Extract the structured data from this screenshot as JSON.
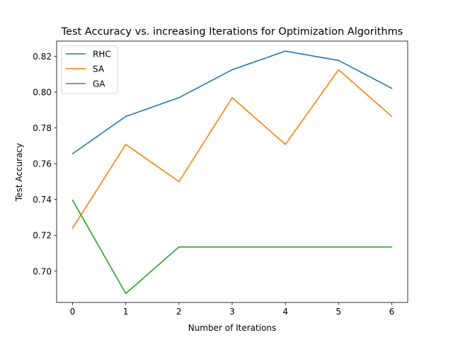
{
  "chart_data": {
    "type": "line",
    "title": "Test Accuracy vs. increasing Iterations for Optimization Algorithms",
    "xlabel": "Number of Iterations",
    "ylabel": "Test Accuracy",
    "x": [
      0,
      1,
      2,
      3,
      4,
      5,
      6
    ],
    "xlim": [
      -0.3,
      6.3
    ],
    "ylim": [
      0.6825,
      0.8285
    ],
    "xticks": [
      "0",
      "1",
      "2",
      "3",
      "4",
      "5",
      "6"
    ],
    "yticks": [
      "0.70",
      "0.72",
      "0.74",
      "0.76",
      "0.78",
      "0.80",
      "0.82"
    ],
    "grid": false,
    "legend_position": "top-left",
    "series": [
      {
        "name": "RHC",
        "color": "#1f77b4",
        "values": [
          0.7656,
          0.7864,
          0.7969,
          0.8125,
          0.8229,
          0.8177,
          0.8021
        ]
      },
      {
        "name": "SA",
        "color": "#ff7f0e",
        "values": [
          0.724,
          0.7708,
          0.75,
          0.7969,
          0.7708,
          0.8125,
          0.7864
        ]
      },
      {
        "name": "GA",
        "color": "#2ca02c",
        "values": [
          0.7396,
          0.6875,
          0.7135,
          0.7135,
          0.7135,
          0.7135,
          0.7135
        ]
      }
    ]
  }
}
